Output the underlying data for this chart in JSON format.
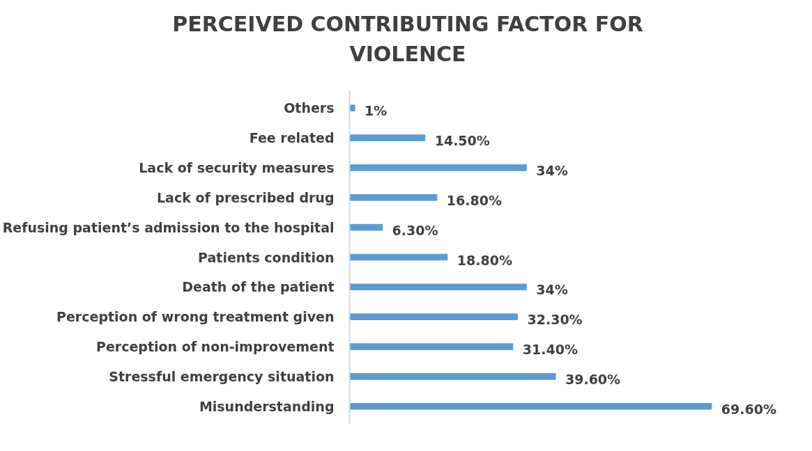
{
  "chart_data": {
    "type": "bar",
    "orientation": "horizontal",
    "title": "PERCEIVED CONTRIBUTING FACTOR FOR VIOLENCE",
    "categories": [
      "Others",
      "Fee related",
      "Lack of security measures",
      "Lack of prescribed drug",
      "Refusing patient’s admission to the hospital",
      "Patients condition",
      "Death of the patient",
      "Perception of wrong treatment given",
      "Perception of non-improvement",
      "Stressful emergency situation",
      "Misunderstanding"
    ],
    "values": [
      1,
      14.5,
      34,
      16.8,
      6.3,
      18.8,
      34,
      32.3,
      31.4,
      39.6,
      69.6
    ],
    "value_labels": [
      "1%",
      "14.50%",
      "34%",
      "16.80%",
      "6.30%",
      "18.80%",
      "34%",
      "32.30%",
      "31.40%",
      "39.60%",
      "69.60%"
    ],
    "color": "#5b9bd5",
    "tick_labels": "y",
    "grid": false
  }
}
